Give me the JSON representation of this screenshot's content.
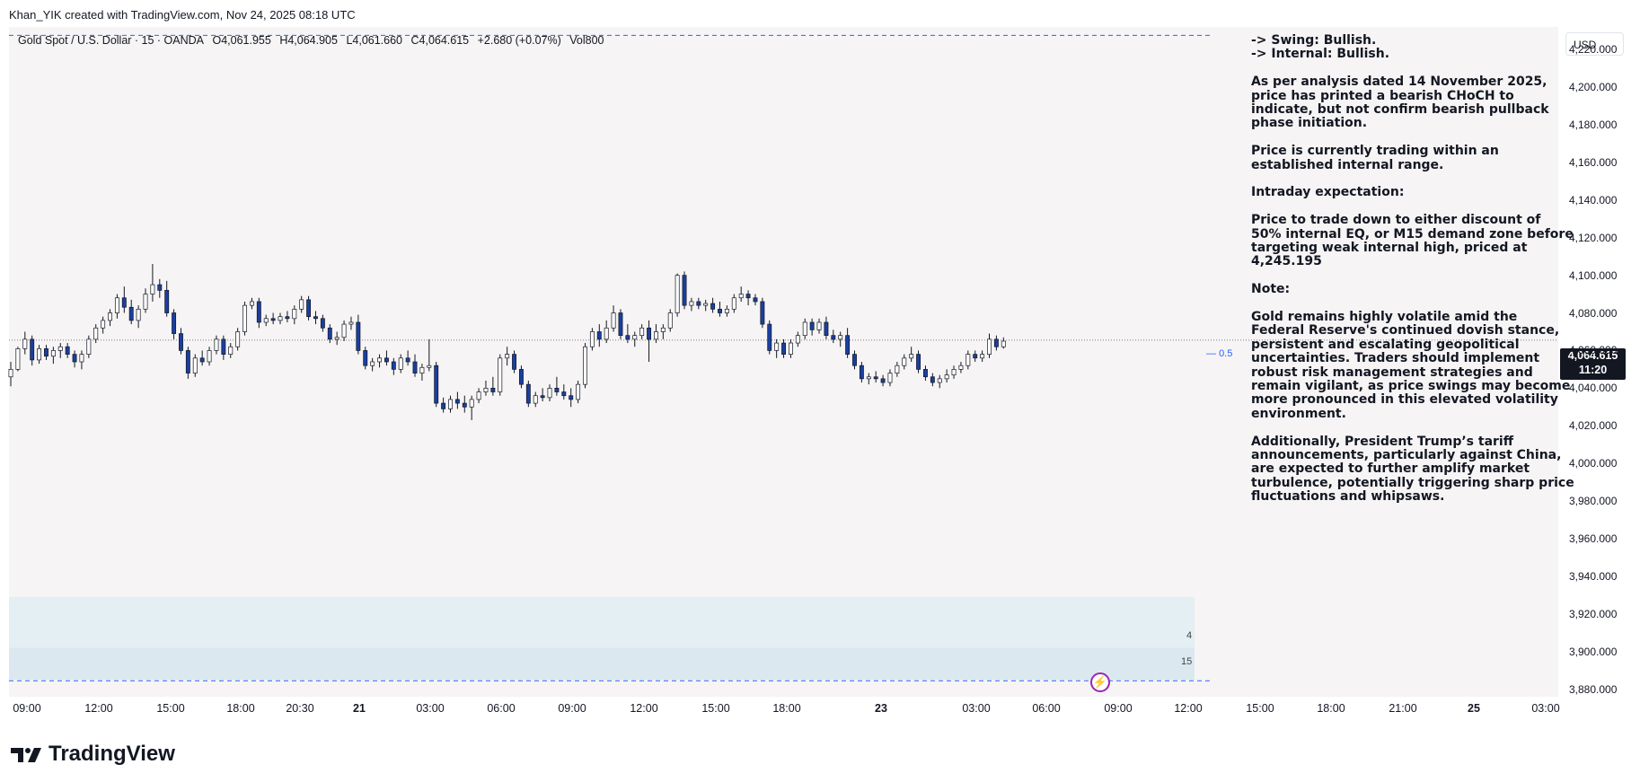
{
  "header": {
    "credit": "Khan_YIK created with TradingView.com, Nov 24, 2025 08:18 UTC"
  },
  "symbol": {
    "name": "Gold Spot / U.S. Dollar · 15 · OANDA",
    "open": "O4,061.955",
    "high": "H4,064.905",
    "low": "L4,061.660",
    "close": "C4,064.615",
    "change": "+2.680 (+0.07%)",
    "volume": "Vol800"
  },
  "currency_button": "USD",
  "last_price": {
    "price": "4,064.615",
    "countdown": "11:20"
  },
  "fib_level": "0.5",
  "volume_labels": [
    "4",
    "15"
  ],
  "note": [
    "-> Swing: Bullish.\n-> Internal: Bullish.",
    "As per analysis dated 14 November 2025, price has printed a bearish CHoCH to indicate, but not confirm bearish pullback phase initiation.",
    "Price is currently trading within an established internal range.",
    "Intraday expectation:",
    "Price to trade down to either discount of 50% internal EQ, or M15 demand zone before targeting weak internal high, priced at 4,245.195",
    "Note:",
    "Gold remains highly volatile amid the Federal Reserve's continued dovish stance, persistent and escalating geopolitical uncertainties. Traders should implement robust risk management strategies and remain vigilant, as price swings may become more pronounced in this elevated volatility environment.",
    "Additionally, President Trump’s tariff announcements, particularly against China, are expected to further amplify market turbulence, potentially triggering sharp price fluctuations and whipsaws."
  ],
  "footer": {
    "brand": "TradingView"
  },
  "colors": {
    "bull": "#ffffff",
    "bear": "#1a3fa0",
    "wick": "#131722",
    "dashed": "#2962ff",
    "bg": "#f6f4f4"
  },
  "chart_data": {
    "type": "candlestick",
    "y_ticks": [
      "4,220.000",
      "4,200.000",
      "4,180.000",
      "4,160.000",
      "4,140.000",
      "4,120.000",
      "4,100.000",
      "4,080.000",
      "4,060.000",
      "4,040.000",
      "4,020.000",
      "4,000.000",
      "3,980.000",
      "3,960.000",
      "3,940.000",
      "3,920.000",
      "3,900.000",
      "3,880.000"
    ],
    "ylim": [
      3876,
      4232
    ],
    "x_ticks": [
      {
        "label": "09:00",
        "bold": false
      },
      {
        "label": "12:00",
        "bold": false
      },
      {
        "label": "15:00",
        "bold": false
      },
      {
        "label": "18:00",
        "bold": false
      },
      {
        "label": "20:30",
        "bold": false
      },
      {
        "label": "21",
        "bold": true
      },
      {
        "label": "03:00",
        "bold": false
      },
      {
        "label": "06:00",
        "bold": false
      },
      {
        "label": "09:00",
        "bold": false
      },
      {
        "label": "12:00",
        "bold": false
      },
      {
        "label": "15:00",
        "bold": false
      },
      {
        "label": "18:00",
        "bold": false
      },
      {
        "label": "23",
        "bold": true
      },
      {
        "label": "03:00",
        "bold": false
      },
      {
        "label": "06:00",
        "bold": false
      },
      {
        "label": "09:00",
        "bold": false
      },
      {
        "label": "12:00",
        "bold": false
      },
      {
        "label": "15:00",
        "bold": false
      },
      {
        "label": "18:00",
        "bold": false
      },
      {
        "label": "21:00",
        "bold": false
      },
      {
        "label": "25",
        "bold": true
      },
      {
        "label": "03:00",
        "bold": false
      }
    ],
    "last_price": 4064.615,
    "ranges": [
      {
        "name": "premium-boundary",
        "value": 4227.5
      },
      {
        "name": "fib-0.5",
        "value": 4065.5
      },
      {
        "name": "discount-boundary",
        "value": 3884.5
      }
    ],
    "demand_zones": [
      {
        "high": 3929,
        "low": 3902
      },
      {
        "high": 3902,
        "low": 3885
      }
    ],
    "candles": [
      [
        4046,
        4054,
        4041,
        4050
      ],
      [
        4050,
        4062,
        4049,
        4061
      ],
      [
        4061,
        4070,
        4058,
        4066
      ],
      [
        4066,
        4068,
        4052,
        4055
      ],
      [
        4055,
        4063,
        4053,
        4061
      ],
      [
        4061,
        4063,
        4055,
        4057
      ],
      [
        4057,
        4062,
        4053,
        4060
      ],
      [
        4060,
        4064,
        4056,
        4062
      ],
      [
        4062,
        4064,
        4056,
        4058
      ],
      [
        4058,
        4060,
        4051,
        4054
      ],
      [
        4054,
        4060,
        4050,
        4058
      ],
      [
        4058,
        4068,
        4056,
        4066
      ],
      [
        4066,
        4074,
        4064,
        4072
      ],
      [
        4072,
        4078,
        4069,
        4076
      ],
      [
        4076,
        4082,
        4073,
        4080
      ],
      [
        4080,
        4090,
        4077,
        4088
      ],
      [
        4088,
        4094,
        4080,
        4083
      ],
      [
        4083,
        4087,
        4074,
        4076
      ],
      [
        4076,
        4084,
        4072,
        4082
      ],
      [
        4082,
        4093,
        4080,
        4090
      ],
      [
        4090,
        4106,
        4086,
        4095
      ],
      [
        4095,
        4098,
        4088,
        4092
      ],
      [
        4092,
        4097,
        4078,
        4080
      ],
      [
        4080,
        4082,
        4066,
        4069
      ],
      [
        4069,
        4072,
        4058,
        4060
      ],
      [
        4060,
        4062,
        4045,
        4048
      ],
      [
        4048,
        4058,
        4046,
        4056
      ],
      [
        4056,
        4060,
        4052,
        4054
      ],
      [
        4054,
        4062,
        4052,
        4060
      ],
      [
        4060,
        4068,
        4058,
        4066
      ],
      [
        4066,
        4068,
        4055,
        4058
      ],
      [
        4058,
        4064,
        4056,
        4062
      ],
      [
        4062,
        4072,
        4060,
        4070
      ],
      [
        4070,
        4086,
        4068,
        4084
      ],
      [
        4084,
        4088,
        4082,
        4086
      ],
      [
        4086,
        4088,
        4072,
        4075
      ],
      [
        4075,
        4079,
        4073,
        4077
      ],
      [
        4077,
        4080,
        4074,
        4076
      ],
      [
        4076,
        4080,
        4074,
        4078
      ],
      [
        4078,
        4081,
        4075,
        4077
      ],
      [
        4077,
        4084,
        4074,
        4082
      ],
      [
        4082,
        4089,
        4080,
        4087
      ],
      [
        4087,
        4089,
        4076,
        4078
      ],
      [
        4078,
        4081,
        4074,
        4077
      ],
      [
        4077,
        4079,
        4070,
        4072
      ],
      [
        4072,
        4074,
        4064,
        4066
      ],
      [
        4066,
        4070,
        4063,
        4067
      ],
      [
        4067,
        4076,
        4065,
        4074
      ],
      [
        4074,
        4078,
        4071,
        4075
      ],
      [
        4075,
        4079,
        4058,
        4060
      ],
      [
        4060,
        4062,
        4050,
        4052
      ],
      [
        4052,
        4056,
        4049,
        4054
      ],
      [
        4054,
        4058,
        4051,
        4056
      ],
      [
        4056,
        4060,
        4052,
        4054
      ],
      [
        4054,
        4056,
        4047,
        4050
      ],
      [
        4050,
        4058,
        4048,
        4056
      ],
      [
        4056,
        4060,
        4052,
        4054
      ],
      [
        4054,
        4058,
        4046,
        4048
      ],
      [
        4048,
        4053,
        4044,
        4051
      ],
      [
        4051,
        4066,
        4049,
        4052
      ],
      [
        4052,
        4054,
        4030,
        4032
      ],
      [
        4032,
        4035,
        4027,
        4029
      ],
      [
        4029,
        4036,
        4027,
        4034
      ],
      [
        4034,
        4038,
        4029,
        4032
      ],
      [
        4032,
        4036,
        4027,
        4030
      ],
      [
        4030,
        4036,
        4023,
        4034
      ],
      [
        4034,
        4040,
        4032,
        4038
      ],
      [
        4038,
        4044,
        4036,
        4040
      ],
      [
        4040,
        4046,
        4036,
        4038
      ],
      [
        4038,
        4058,
        4036,
        4056
      ],
      [
        4056,
        4062,
        4052,
        4058
      ],
      [
        4058,
        4060,
        4048,
        4050
      ],
      [
        4050,
        4052,
        4040,
        4042
      ],
      [
        4042,
        4044,
        4030,
        4032
      ],
      [
        4032,
        4038,
        4030,
        4036
      ],
      [
        4036,
        4040,
        4033,
        4035
      ],
      [
        4035,
        4042,
        4033,
        4040
      ],
      [
        4040,
        4046,
        4036,
        4038
      ],
      [
        4038,
        4042,
        4034,
        4036
      ],
      [
        4036,
        4040,
        4030,
        4034
      ],
      [
        4034,
        4044,
        4032,
        4042
      ],
      [
        4042,
        4064,
        4040,
        4062
      ],
      [
        4062,
        4072,
        4060,
        4070
      ],
      [
        4070,
        4074,
        4062,
        4066
      ],
      [
        4066,
        4076,
        4064,
        4072
      ],
      [
        4072,
        4084,
        4070,
        4080
      ],
      [
        4080,
        4082,
        4066,
        4068
      ],
      [
        4068,
        4074,
        4064,
        4066
      ],
      [
        4066,
        4070,
        4062,
        4068
      ],
      [
        4068,
        4074,
        4066,
        4072
      ],
      [
        4072,
        4076,
        4054,
        4066
      ],
      [
        4066,
        4074,
        4064,
        4070
      ],
      [
        4070,
        4074,
        4066,
        4072
      ],
      [
        4072,
        4082,
        4070,
        4080
      ],
      [
        4080,
        4101,
        4078,
        4100
      ],
      [
        4100,
        4102,
        4082,
        4084
      ],
      [
        4084,
        4088,
        4081,
        4086
      ],
      [
        4086,
        4088,
        4082,
        4084
      ],
      [
        4084,
        4087,
        4081,
        4085
      ],
      [
        4085,
        4088,
        4080,
        4082
      ],
      [
        4082,
        4086,
        4078,
        4080
      ],
      [
        4080,
        4084,
        4078,
        4082
      ],
      [
        4082,
        4090,
        4080,
        4088
      ],
      [
        4088,
        4094,
        4086,
        4090
      ],
      [
        4090,
        4092,
        4084,
        4088
      ],
      [
        4088,
        4090,
        4084,
        4086
      ],
      [
        4086,
        4088,
        4072,
        4074
      ],
      [
        4074,
        4076,
        4058,
        4060
      ],
      [
        4060,
        4066,
        4056,
        4064
      ],
      [
        4064,
        4066,
        4056,
        4058
      ],
      [
        4058,
        4066,
        4056,
        4064
      ],
      [
        4064,
        4070,
        4062,
        4068
      ],
      [
        4068,
        4077,
        4066,
        4075
      ],
      [
        4075,
        4077,
        4068,
        4071
      ],
      [
        4071,
        4077,
        4069,
        4075
      ],
      [
        4075,
        4078,
        4066,
        4068
      ],
      [
        4068,
        4071,
        4064,
        4066
      ],
      [
        4066,
        4070,
        4062,
        4068
      ],
      [
        4068,
        4072,
        4056,
        4058
      ],
      [
        4058,
        4060,
        4050,
        4052
      ],
      [
        4052,
        4054,
        4043,
        4045
      ],
      [
        4045,
        4048,
        4042,
        4046
      ],
      [
        4046,
        4049,
        4043,
        4045
      ],
      [
        4045,
        4047,
        4041,
        4043
      ],
      [
        4043,
        4050,
        4041,
        4048
      ],
      [
        4048,
        4054,
        4046,
        4052
      ],
      [
        4052,
        4058,
        4050,
        4056
      ],
      [
        4056,
        4062,
        4054,
        4058
      ],
      [
        4058,
        4060,
        4048,
        4050
      ],
      [
        4050,
        4052,
        4044,
        4046
      ],
      [
        4046,
        4048,
        4041,
        4043
      ],
      [
        4043,
        4047,
        4040,
        4045
      ],
      [
        4045,
        4050,
        4043,
        4047
      ],
      [
        4047,
        4052,
        4045,
        4050
      ],
      [
        4050,
        4054,
        4048,
        4052
      ],
      [
        4052,
        4060,
        4050,
        4058
      ],
      [
        4058,
        4060,
        4054,
        4056
      ],
      [
        4056,
        4060,
        4054,
        4058
      ],
      [
        4058,
        4069,
        4056,
        4066
      ],
      [
        4066,
        4068,
        4060,
        4062
      ],
      [
        4062,
        4067,
        4061,
        4065
      ]
    ]
  }
}
